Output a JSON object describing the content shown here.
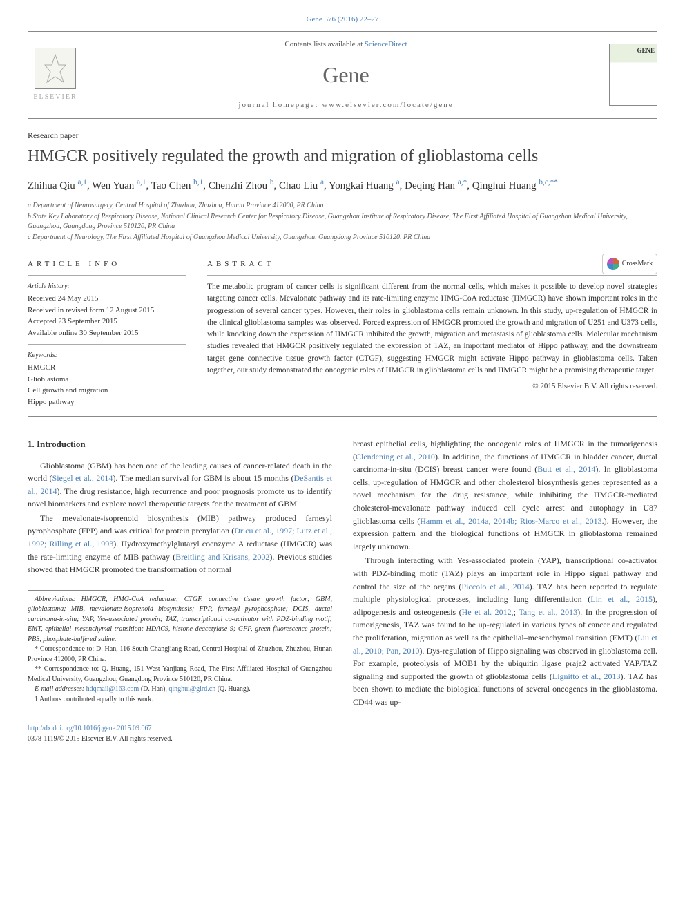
{
  "header": {
    "citation": "Gene 576 (2016) 22–27",
    "contents_prefix": "Contents lists available at ",
    "contents_link": "ScienceDirect",
    "journal": "Gene",
    "homepage_label": "journal homepage: ",
    "homepage_url": "www.elsevier.com/locate/gene",
    "publisher": "ELSEVIER",
    "cover_title": "GENE"
  },
  "crossmark": "CrossMark",
  "paper_type": "Research paper",
  "title": "HMGCR positively regulated the growth and migration of glioblastoma cells",
  "authors_html": "Zhihua Qiu <a><sup>a,1</sup></a>, Wen Yuan <a><sup>a,1</sup></a>, Tao Chen <a><sup>b,1</sup></a>, Chenzhi Zhou <a><sup>b</sup></a>, Chao Liu <a><sup>a</sup></a>, Yongkai Huang <a><sup>a</sup></a>, Deqing Han <a><sup>a,*</sup></a>, Qinghui Huang <a><sup>b,c,**</sup></a>",
  "affiliations": [
    "a  Department of Neurosurgery, Central Hospital of Zhuzhou, Zhuzhou, Hunan Province 412000, PR China",
    "b  State Key Laboratory of Respiratory Disease, National Clinical Research Center for Respiratory Disease, Guangzhou Institute of Respiratory Disease, The First Affiliated Hospital of Guangzhou Medical University, Guangzhou, Guangdong Province 510120, PR China",
    "c  Department of Neurology, The First Affiliated Hospital of Guangzhou Medical University, Guangzhou, Guangdong Province 510120, PR China"
  ],
  "article_info": {
    "header": "article info",
    "history_label": "Article history:",
    "history": [
      "Received 24 May 2015",
      "Received in revised form 12 August 2015",
      "Accepted 23 September 2015",
      "Available online 30 September 2015"
    ],
    "keywords_label": "Keywords:",
    "keywords": [
      "HMGCR",
      "Glioblastoma",
      "Cell growth and migration",
      "Hippo pathway"
    ]
  },
  "abstract": {
    "header": "abstract",
    "text": "The metabolic program of cancer cells is significant different from the normal cells, which makes it possible to develop novel strategies targeting cancer cells. Mevalonate pathway and its rate-limiting enzyme HMG-CoA reductase (HMGCR) have shown important roles in the progression of several cancer types. However, their roles in glioblastoma cells remain unknown. In this study, up-regulation of HMGCR in the clinical glioblastoma samples was observed. Forced expression of HMGCR promoted the growth and migration of U251 and U373 cells, while knocking down the expression of HMGCR inhibited the growth, migration and metastasis of glioblastoma cells. Molecular mechanism studies revealed that HMGCR positively regulated the expression of TAZ, an important mediator of Hippo pathway, and the downstream target gene connective tissue growth factor (CTGF), suggesting HMGCR might activate Hippo pathway in glioblastoma cells. Taken together, our study demonstrated the oncogenic roles of HMGCR in glioblastoma cells and HMGCR might be a promising therapeutic target.",
    "copyright": "© 2015 Elsevier B.V. All rights reserved."
  },
  "section1_head": "1. Introduction",
  "col1_paras": [
    "Glioblastoma (GBM) has been one of the leading causes of cancer-related death in the world (<a>Siegel et al., 2014</a>). The median survival for GBM is about 15 months (<a>DeSantis et al., 2014</a>). The drug resistance, high recurrence and poor prognosis promote us to identify novel biomarkers and explore novel therapeutic targets for the treatment of GBM.",
    "The mevalonate-isoprenoid biosynthesis (MIB) pathway produced farnesyl pyrophosphate (FPP) and was critical for protein prenylation (<a>Dricu et al., 1997; Lutz et al., 1992; Rilling et al., 1993</a>). Hydroxymethylglutaryl coenzyme A reductase (HMGCR) was the rate-limiting enzyme of MIB pathway (<a>Breitling and Krisans, 2002</a>). Previous studies showed that HMGCR promoted the transformation of normal"
  ],
  "footnotes": {
    "abbrev": "Abbreviations: HMGCR, HMG-CoA reductase; CTGF, connective tissue growth factor; GBM, glioblastoma; MIB, mevalonate-isoprenoid biosynthesis; FPP, farnesyl pyrophosphate; DCIS, ductal carcinoma-in-situ; YAP, Yes-associated protein; TAZ, transcriptional co-activator with PDZ-binding motif; EMT, epithelial–mesenchymal transition; HDAC9, histone deacetylase 9; GFP, green fluorescence protein; PBS, phosphate-buffered saline.",
    "star": "* Correspondence to: D. Han, 116 South Changjiang Road, Central Hospital of Zhuzhou, Zhuzhou, Hunan Province 412000, PR China.",
    "dstar": "** Correspondence to: Q. Huang, 151 West Yanjiang Road, The First Affiliated Hospital of Guangzhou Medical University, Guangzhou, Guangdong Province 510120, PR China.",
    "email_label": "E-mail addresses: ",
    "email1": "hdqmail@163.com",
    "email1_suffix": " (D. Han), ",
    "email2": "qinghui@gird.cn",
    "email2_suffix": " (Q. Huang).",
    "one": "1  Authors contributed equally to this work."
  },
  "col2_paras": [
    "breast epithelial cells, highlighting the oncogenic roles of HMGCR in the tumorigenesis (<a>Clendening et al., 2010</a>). In addition, the functions of HMGCR in bladder cancer, ductal carcinoma-in-situ (DCIS) breast cancer were found (<a>Butt et al., 2014</a>). In glioblastoma cells, up-regulation of HMGCR and other cholesterol biosynthesis genes represented as a novel mechanism for the drug resistance, while inhibiting the HMGCR-mediated cholesterol-mevalonate pathway induced cell cycle arrest and autophagy in U87 glioblastoma cells (<a>Hamm et al., 2014a, 2014b; Rios-Marco et al., 2013</a>.). However, the expression pattern and the biological functions of HMGCR in glioblastoma remained largely unknown.",
    "Through interacting with Yes-associated protein (YAP), transcriptional co-activator with PDZ-binding motif (TAZ) plays an important role in Hippo signal pathway and control the size of the organs (<a>Piccolo et al., 2014</a>). TAZ has been reported to regulate multiple physiological processes, including lung differentiation (<a>Lin et al., 2015</a>), adipogenesis and osteogenesis (<a>He et al. 2012,</a>; <a>Tang et al., 2013</a>). In the progression of tumorigenesis, TAZ was found to be up-regulated in various types of cancer and regulated the proliferation, migration as well as the epithelial–mesenchymal transition (EMT) (<a>Liu et al., 2010; Pan, 2010</a>). Dys-regulation of Hippo signaling was observed in glioblastoma cell. For example, proteolysis of MOB1 by the ubiquitin ligase praja2 activated YAP/TAZ signaling and supported the growth of glioblastoma cells (<a>Lignitto et al., 2013</a>). TAZ has been shown to mediate the biological functions of several oncogenes in the glioblastoma. CD44 was up-"
  ],
  "footer": {
    "doi": "http://dx.doi.org/10.1016/j.gene.2015.09.067",
    "issn": "0378-1119/© 2015 Elsevier B.V. All rights reserved."
  }
}
